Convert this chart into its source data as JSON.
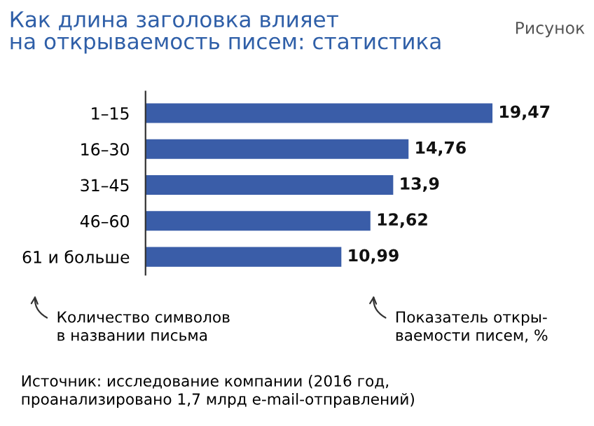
{
  "chart_data": {
    "type": "bar",
    "orientation": "horizontal",
    "title": "Как длина заголовка влияет\nна открываемость писем: статистика",
    "subtitle": "Рисунок",
    "categories": [
      "1–15",
      "16–30",
      "31–45",
      "46–60",
      "61 и больше"
    ],
    "values": [
      19.47,
      14.76,
      13.9,
      12.62,
      10.99
    ],
    "value_labels": [
      "19,47",
      "14,76",
      "13,9",
      "12,62",
      "10,99"
    ],
    "color": "#3a5da8",
    "xlabel": "Показатель откры-\nваемости писем, %",
    "ylabel": "Количество символов\nв названии письма",
    "annotations": [
      "Источник: исследование компании (2016 год,\nпроанализировано 1,7 млрд e-mail-отправлений)"
    ],
    "grid": false,
    "legend": false
  }
}
